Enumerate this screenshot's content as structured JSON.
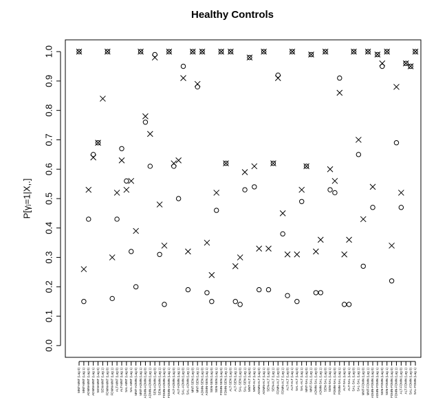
{
  "chart_data": {
    "type": "scatter",
    "title": "Healthy Controls",
    "y_label": "P[γⱼ=1|X,.]",
    "categories": [
      "MNT-MNT (Lag 0)",
      "MNT-MNT (Lag 1)",
      "ADMN-MNT (Lag 0)",
      "ADMN-MNT (Lag 1)",
      "SEN-MNT (Lag 0)",
      "SEN-MNT (Lag 1)",
      "FDMN-MNT (Lag 0)",
      "FDMN-MNT (Lag 1)",
      "ALT-MNT (Lag 0)",
      "ALT-MNT (Lag 1)",
      "SAL-MNT (Lag 0)",
      "SAL-MNT (Lag 1)",
      "MNT-ADMN (Lag 0)",
      "MNT-ADMN (Lag 1)",
      "ADMN-ADMN (Lag 0)",
      "ADMN-ADMN (Lag 1)",
      "SEN-ADMN (Lag 0)",
      "SEN-ADMN (Lag 1)",
      "FDMN-ADMN (Lag 0)",
      "FDMN-ADMN (Lag 1)",
      "ALT-ADMN (Lag 0)",
      "ALT-ADMN (Lag 1)",
      "SAL-ADMN (Lag 0)",
      "SAL-ADMN (Lag 1)",
      "MNT-SEN (Lag 0)",
      "MNT-SEN (Lag 1)",
      "ADMN-SEN (Lag 0)",
      "ADMN-SEN (Lag 1)",
      "SEN-SEN (Lag 0)",
      "SEN-SEN (Lag 1)",
      "FDMN-SEN (Lag 0)",
      "FDMN-SEN (Lag 1)",
      "ALT-SEN (Lag 0)",
      "ALT-SEN (Lag 1)",
      "SAL-SEN (Lag 0)",
      "SAL-SEN (Lag 1)",
      "MNT-ALT (Lag 0)",
      "MNT-ALT (Lag 1)",
      "ADMN-ALT (Lag 0)",
      "ADMN-ALT (Lag 1)",
      "SEN-ALT (Lag 0)",
      "SEN-ALT (Lag 1)",
      "FDMN-ALT (Lag 0)",
      "FDMN-ALT (Lag 1)",
      "ALT-ALT (Lag 0)",
      "ALT-ALT (Lag 1)",
      "SAL-ALT (Lag 0)",
      "SAL-ALT (Lag 1)",
      "MNT-SAL (Lag 0)",
      "MNT-SAL (Lag 1)",
      "ADMN-SAL (Lag 0)",
      "ADMN-SAL (Lag 1)",
      "SEN-SAL (Lag 0)",
      "SEN-SAL (Lag 1)",
      "FDMN-SAL (Lag 0)",
      "FDMN-SAL (Lag 1)",
      "ALT-SAL (Lag 0)",
      "ALT-SAL (Lag 1)",
      "SAL-SAL (Lag 0)",
      "SAL-SAL (Lag 1)",
      "MNT-FDMN (Lag 0)",
      "MNT-FDMN (Lag 1)",
      "ADMN-FDMN (Lag 0)",
      "ADMN-FDMN (Lag 1)",
      "SEN-FDMN (Lag 0)",
      "SEN-FDMN (Lag 1)",
      "FDMN-FDMN (Lag 0)",
      "FDMN-FDMN (Lag 1)",
      "ALT-FDMN (Lag 0)",
      "ALT-FDMN (Lag 1)",
      "SAL-FDMN (Lag 0)",
      "SAL-FDMN (Lag 1)"
    ],
    "series": [
      {
        "marker": "circle",
        "color": "#000000",
        "values": [
          1,
          0.15,
          0.43,
          0.65,
          0.69,
          null,
          1,
          0.16,
          0.43,
          0.67,
          0.56,
          0.32,
          0.2,
          1,
          0.76,
          0.61,
          0.99,
          0.31,
          0.14,
          1,
          0.61,
          0.5,
          0.95,
          0.19,
          1,
          0.88,
          1,
          0.18,
          0.15,
          0.46,
          1,
          0.62,
          1,
          0.15,
          0.14,
          0.53,
          0.98,
          0.54,
          0.19,
          1,
          0.19,
          0.62,
          0.92,
          0.38,
          0.17,
          1,
          0.15,
          0.49,
          0.61,
          0.99,
          0.18,
          0.18,
          1,
          0.53,
          0.52,
          0.91,
          0.14,
          0.14,
          1,
          0.65,
          0.27,
          1,
          0.47,
          0.99,
          0.95,
          1,
          0.22,
          0.69,
          0.47,
          0.96,
          0.95,
          1
        ]
      },
      {
        "marker": "cross",
        "color": "#000000",
        "values": [
          1,
          0.26,
          0.53,
          0.64,
          0.69,
          0.84,
          1,
          0.3,
          0.52,
          0.63,
          0.53,
          0.56,
          0.39,
          1,
          0.78,
          0.72,
          0.98,
          0.48,
          0.34,
          1,
          0.62,
          0.63,
          0.91,
          0.32,
          1,
          0.89,
          1,
          0.35,
          0.24,
          0.52,
          1,
          0.62,
          1,
          0.27,
          0.3,
          0.59,
          0.98,
          0.61,
          0.33,
          1,
          0.33,
          0.62,
          0.91,
          0.45,
          0.31,
          1,
          0.31,
          0.53,
          0.61,
          0.99,
          0.32,
          0.36,
          1,
          0.6,
          0.56,
          0.86,
          0.31,
          0.36,
          1,
          0.7,
          0.43,
          1,
          0.54,
          0.99,
          0.96,
          1,
          0.34,
          0.88,
          0.52,
          0.96,
          0.95,
          1
        ]
      }
    ],
    "ylim": [
      -0.04,
      1.04
    ],
    "yticks": [
      {
        "value": 0,
        "label": "0.0"
      },
      {
        "value": 0.1,
        "label": "0.1"
      },
      {
        "value": 0.2,
        "label": "0.2"
      },
      {
        "value": 0.3,
        "label": "0.3"
      },
      {
        "value": 0.4,
        "label": "0.4"
      },
      {
        "value": 0.5,
        "label": "0.5"
      },
      {
        "value": 0.6,
        "label": "0.6"
      },
      {
        "value": 0.7,
        "label": "0.7"
      },
      {
        "value": 0.8,
        "label": "0.8"
      },
      {
        "value": 0.9,
        "label": "0.9"
      },
      {
        "value": 1,
        "label": "1.0"
      }
    ],
    "grid": false
  }
}
